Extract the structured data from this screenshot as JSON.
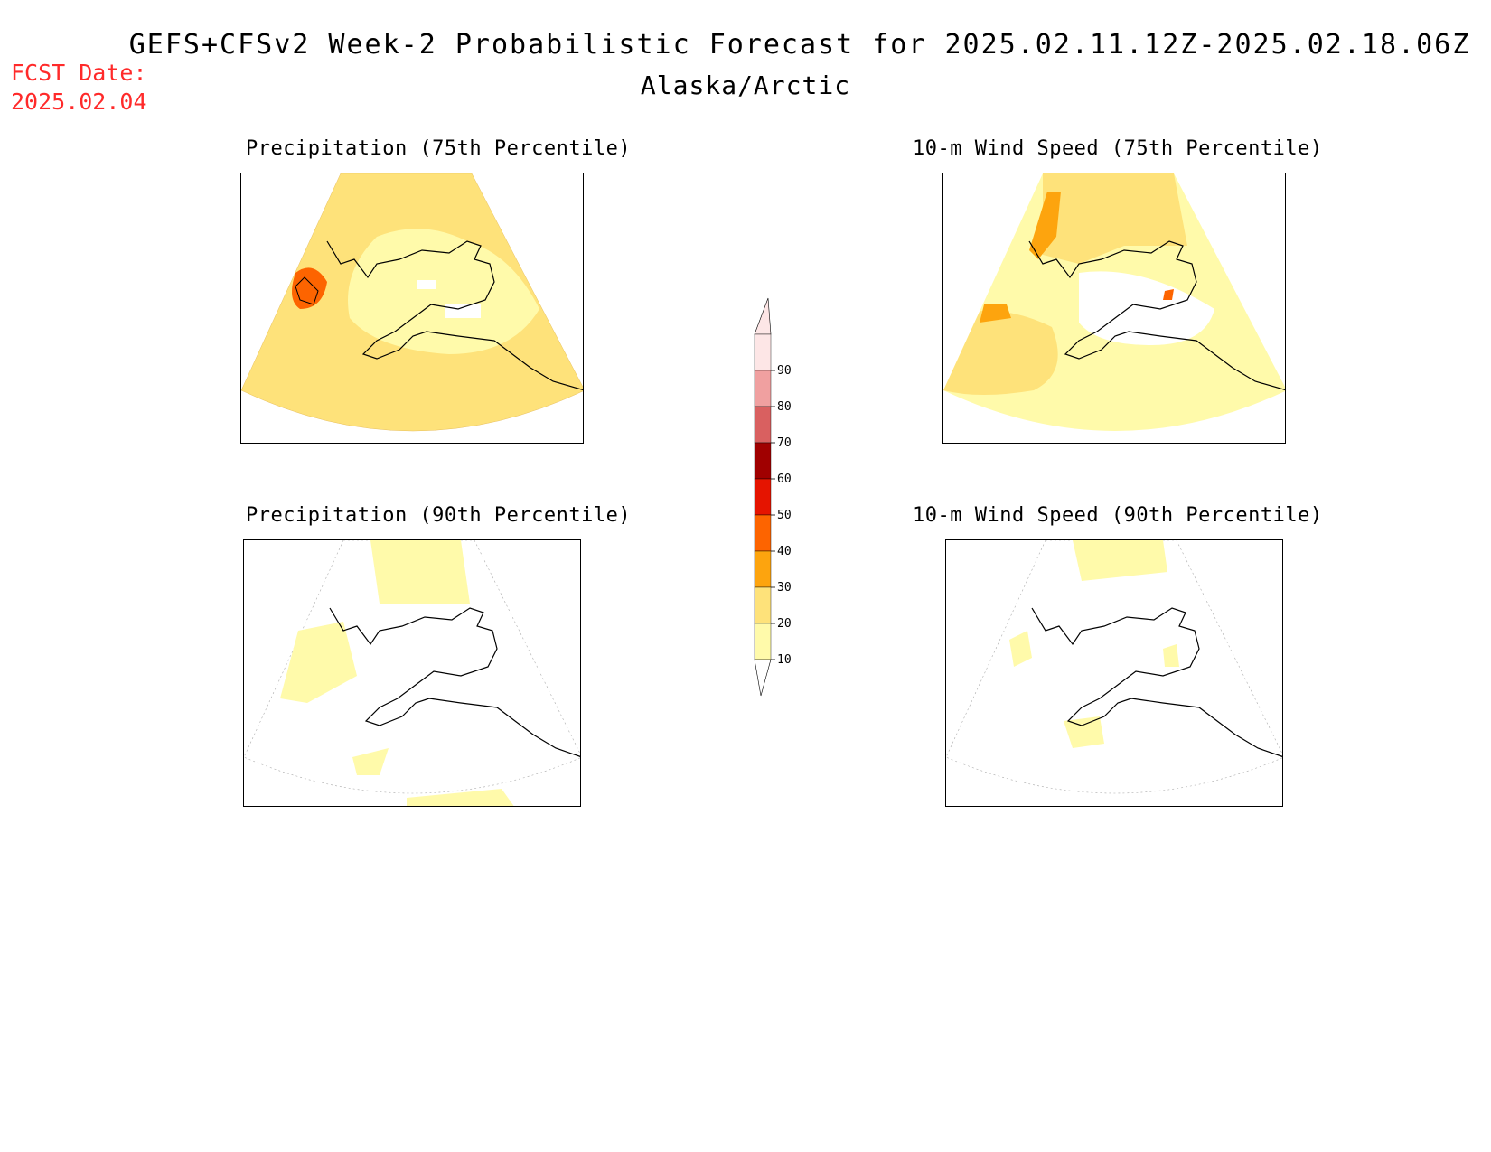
{
  "header": {
    "title": "GEFS+CFSv2 Week-2 Probabilistic Forecast for 2025.02.11.12Z-2025.02.18.06Z",
    "subtitle": "Alaska/Arctic",
    "fcst_label": "FCST Date:",
    "fcst_date": "2025.02.04"
  },
  "panels": [
    {
      "id": "precip-75",
      "title": "Precipitation (75th Percentile)"
    },
    {
      "id": "wind-75",
      "title": "10-m Wind Speed (75th Percentile)"
    },
    {
      "id": "precip-90",
      "title": "Precipitation (90th Percentile)"
    },
    {
      "id": "wind-90",
      "title": "10-m Wind Speed (90th Percentile)"
    }
  ],
  "legend": {
    "levels": [
      "10",
      "20",
      "30",
      "40",
      "50",
      "60",
      "70",
      "80",
      "90"
    ],
    "colors": [
      "#fffaaa",
      "#fee27a",
      "#fda40e",
      "#fd6400",
      "#e51400",
      "#a00000",
      "#d96060",
      "#f0a0a0",
      "#fde6e6"
    ]
  }
}
